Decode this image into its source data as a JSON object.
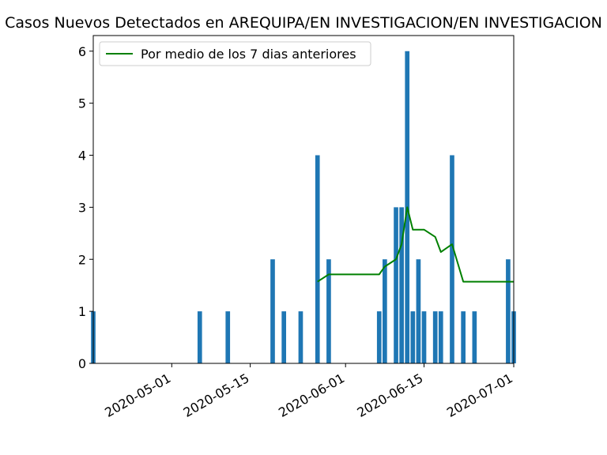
{
  "chart_data": {
    "type": "bar",
    "title": "Casos Nuevos Detectados en AREQUIPA/EN INVESTIGACION/EN INVESTIGACION",
    "xlabel": "",
    "ylabel": "",
    "xlim": [
      "2020-04-17",
      "2020-07-01"
    ],
    "ylim": [
      0,
      6.3
    ],
    "yticks": [
      0,
      1,
      2,
      3,
      4,
      5,
      6
    ],
    "xticks": [
      "2020-05-01",
      "2020-05-15",
      "2020-06-01",
      "2020-06-15",
      "2020-07-01"
    ],
    "grid": false,
    "legend_position": "top-left",
    "bar_color": "#1f77b4",
    "line_color": "#008000",
    "bars": [
      {
        "date": "2020-04-17",
        "value": 1
      },
      {
        "date": "2020-05-06",
        "value": 1
      },
      {
        "date": "2020-05-11",
        "value": 1
      },
      {
        "date": "2020-05-19",
        "value": 2
      },
      {
        "date": "2020-05-21",
        "value": 1
      },
      {
        "date": "2020-05-24",
        "value": 1
      },
      {
        "date": "2020-05-27",
        "value": 4
      },
      {
        "date": "2020-05-29",
        "value": 2
      },
      {
        "date": "2020-06-07",
        "value": 1
      },
      {
        "date": "2020-06-08",
        "value": 2
      },
      {
        "date": "2020-06-10",
        "value": 3
      },
      {
        "date": "2020-06-11",
        "value": 3
      },
      {
        "date": "2020-06-12",
        "value": 6
      },
      {
        "date": "2020-06-13",
        "value": 1
      },
      {
        "date": "2020-06-14",
        "value": 2
      },
      {
        "date": "2020-06-15",
        "value": 1
      },
      {
        "date": "2020-06-17",
        "value": 1
      },
      {
        "date": "2020-06-18",
        "value": 1
      },
      {
        "date": "2020-06-20",
        "value": 4
      },
      {
        "date": "2020-06-22",
        "value": 1
      },
      {
        "date": "2020-06-24",
        "value": 1
      },
      {
        "date": "2020-06-30",
        "value": 2
      },
      {
        "date": "2020-07-01",
        "value": 1
      }
    ],
    "series": [
      {
        "name": "Por medio de los 7 dias anteriores",
        "points": [
          {
            "date": "2020-05-27",
            "value": 1.57
          },
          {
            "date": "2020-05-29",
            "value": 1.71
          },
          {
            "date": "2020-06-07",
            "value": 1.71
          },
          {
            "date": "2020-06-08",
            "value": 1.86
          },
          {
            "date": "2020-06-10",
            "value": 2.0
          },
          {
            "date": "2020-06-11",
            "value": 2.29
          },
          {
            "date": "2020-06-12",
            "value": 3.0
          },
          {
            "date": "2020-06-13",
            "value": 2.57
          },
          {
            "date": "2020-06-14",
            "value": 2.57
          },
          {
            "date": "2020-06-15",
            "value": 2.57
          },
          {
            "date": "2020-06-17",
            "value": 2.43
          },
          {
            "date": "2020-06-18",
            "value": 2.14
          },
          {
            "date": "2020-06-20",
            "value": 2.29
          },
          {
            "date": "2020-06-22",
            "value": 1.57
          },
          {
            "date": "2020-06-24",
            "value": 1.57
          },
          {
            "date": "2020-06-30",
            "value": 1.57
          },
          {
            "date": "2020-07-01",
            "value": 1.57
          }
        ]
      }
    ]
  }
}
